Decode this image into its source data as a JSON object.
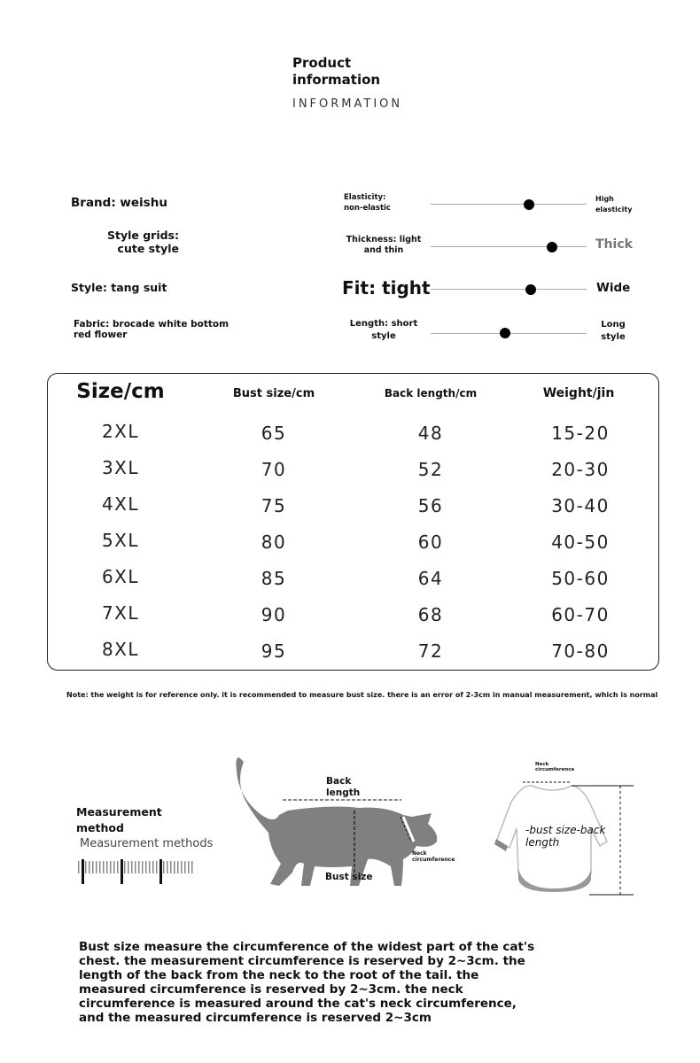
{
  "header": {
    "title_line1": "Product",
    "title_line2": "information",
    "subtitle": "INFORMATION"
  },
  "attributes": [
    "Brand: weishu",
    "Style grids: cute style",
    "Style: tang suit",
    "Fabric: brocade white bottom red flower"
  ],
  "scales": [
    {
      "left": "Elasticity: non-elastic",
      "right": "High elasticity",
      "value_pct": 63
    },
    {
      "left": "Thickness: light and thin",
      "right": "Thick",
      "value_pct": 78
    },
    {
      "left": "Fit: tight",
      "right": "Wide",
      "value_pct": 64
    },
    {
      "left": "Length: short style",
      "right": "Long style",
      "value_pct": 48
    }
  ],
  "size_table": {
    "headers": [
      "Size/cm",
      "Bust size/cm",
      "Back length/cm",
      "Weight/jin"
    ],
    "rows": [
      [
        "2XL",
        "65",
        "48",
        "15-20"
      ],
      [
        "3XL",
        "70",
        "52",
        "20-30"
      ],
      [
        "4XL",
        "75",
        "56",
        "30-40"
      ],
      [
        "5XL",
        "80",
        "60",
        "40-50"
      ],
      [
        "6XL",
        "85",
        "64",
        "50-60"
      ],
      [
        "7XL",
        "90",
        "68",
        "60-70"
      ],
      [
        "8XL",
        "95",
        "72",
        "70-80"
      ]
    ]
  },
  "note": "Note: the weight is for reference only. it is recommended to measure bust size. there is an error of 2-3cm in manual measurement, which is normal",
  "measurement": {
    "title_line1": "Measurement",
    "title_line2": "method",
    "subtitle": "Measurement methods",
    "cat_back": "Back length",
    "cat_neck": "Neck circumference",
    "cat_bust": "Bust size",
    "shirt_neck": "Neck circumference",
    "shirt_label1": "-bust size-back",
    "shirt_label2": "length"
  },
  "description": "Bust size measure the circumference of the widest part of the cat's chest. the measurement circumference is reserved by 2~3cm. the length of the back from the neck to the root of the tail. the measured circumference is reserved by 2~3cm. the neck circumference is measured around the cat's neck circumference, and the measured circumference is reserved 2~3cm",
  "colors": {
    "silhouette": "#808080",
    "text": "#111111"
  }
}
